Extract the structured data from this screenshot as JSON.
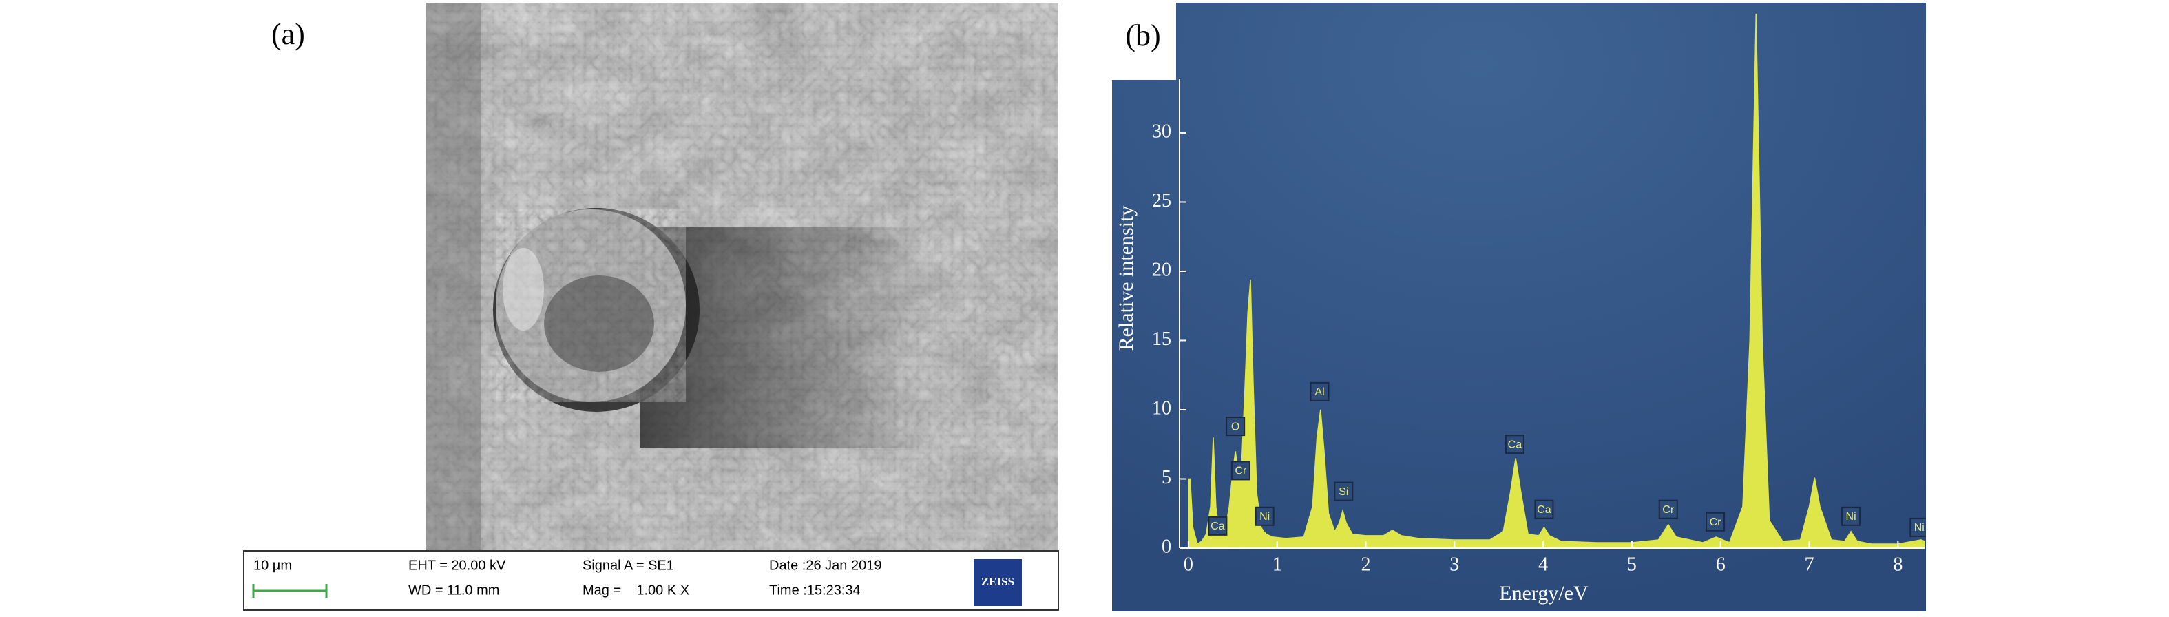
{
  "panel_a": {
    "label": "(a)",
    "info_bar": {
      "scale": "10 μm",
      "eht": "EHT = 20.00 kV",
      "wd": "WD = 11.0 mm",
      "signal": "Signal A = SE1",
      "mag": "Mag =    1.00 K X",
      "date": "Date :26 Jan 2019",
      "time": "Time :15:23:34",
      "logo": "ZEISS"
    }
  },
  "chart_data": {
    "type": "area",
    "label": "(b)",
    "xlabel": "Energy/eV",
    "ylabel": "Relative intensity",
    "color": "#dfe64a",
    "x": [
      0,
      0.02,
      0.05,
      0.1,
      0.15,
      0.2,
      0.25,
      0.28,
      0.31,
      0.35,
      0.39,
      0.42,
      0.46,
      0.5,
      0.53,
      0.56,
      0.6,
      0.64,
      0.67,
      0.7,
      0.73,
      0.77,
      0.82,
      0.85,
      0.88,
      0.95,
      1.1,
      1.3,
      1.4,
      1.45,
      1.49,
      1.53,
      1.58,
      1.65,
      1.7,
      1.74,
      1.78,
      1.85,
      2.0,
      2.2,
      2.3,
      2.4,
      2.6,
      3.0,
      3.4,
      3.55,
      3.63,
      3.69,
      3.75,
      3.83,
      3.95,
      4.01,
      4.07,
      4.2,
      4.6,
      5.0,
      5.3,
      5.41,
      5.5,
      5.8,
      5.95,
      6.1,
      6.25,
      6.33,
      6.4,
      6.47,
      6.55,
      6.7,
      6.9,
      7.0,
      7.06,
      7.12,
      7.25,
      7.4,
      7.47,
      7.54,
      7.7,
      8.0,
      8.26,
      8.3
    ],
    "values": [
      5,
      5,
      1.5,
      0.3,
      0.5,
      1,
      3,
      8,
      3,
      1,
      2,
      1.5,
      3,
      5.5,
      7,
      5.5,
      6,
      12,
      17,
      19.4,
      12,
      4,
      1.5,
      1.2,
      1,
      0.8,
      0.7,
      0.8,
      3,
      8,
      10,
      7,
      2.5,
      1.2,
      1.8,
      2.7,
      1.8,
      1,
      0.9,
      0.9,
      1.3,
      0.9,
      0.7,
      0.6,
      0.6,
      1.2,
      4,
      6.5,
      4,
      1,
      0.9,
      1.5,
      0.9,
      0.5,
      0.4,
      0.4,
      0.6,
      1.7,
      0.8,
      0.4,
      0.8,
      0.4,
      3,
      15,
      38.6,
      15,
      2,
      0.5,
      0.6,
      3,
      5.1,
      3,
      0.6,
      0.5,
      1.2,
      0.5,
      0.3,
      0.3,
      0.6,
      0.5
    ],
    "xlim": [
      -0.1,
      8.3
    ],
    "xticks": [
      0,
      1,
      2,
      3,
      4,
      5,
      6,
      7,
      8
    ],
    "ylim": [
      0,
      39.4
    ],
    "yticks": [
      0,
      5,
      10,
      15,
      20,
      25,
      30
    ],
    "annotations": [
      {
        "text": "Ca",
        "x": 0.33,
        "y": 1.6
      },
      {
        "text": "O",
        "x": 0.53,
        "y": 8.8
      },
      {
        "text": "Cr",
        "x": 0.59,
        "y": 5.6
      },
      {
        "text": "Ni",
        "x": 0.86,
        "y": 2.3
      },
      {
        "text": "Al",
        "x": 1.48,
        "y": 11.3
      },
      {
        "text": "Si",
        "x": 1.75,
        "y": 4.1
      },
      {
        "text": "Ca",
        "x": 3.68,
        "y": 7.5
      },
      {
        "text": "Ca",
        "x": 4.01,
        "y": 2.8
      },
      {
        "text": "Cr",
        "x": 5.41,
        "y": 2.8
      },
      {
        "text": "Cr",
        "x": 5.94,
        "y": 1.9
      },
      {
        "text": "Ni",
        "x": 7.47,
        "y": 2.3
      },
      {
        "text": "Ni",
        "x": 8.24,
        "y": 1.5
      }
    ]
  }
}
